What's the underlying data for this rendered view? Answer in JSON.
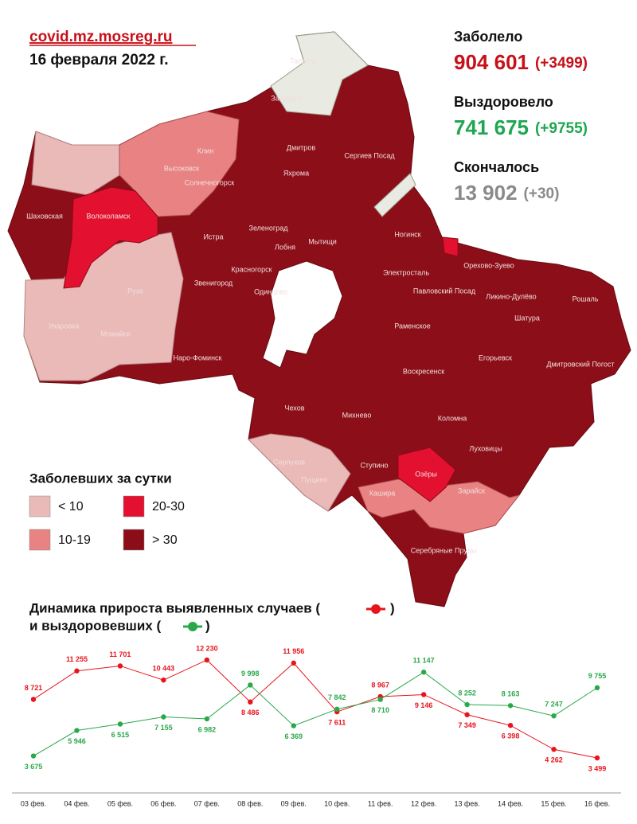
{
  "header": {
    "source": "covid.mz.mosreg.ru",
    "date": "16 февраля 2022 г."
  },
  "stats": [
    {
      "label": "Заболело",
      "value": "904 601",
      "delta": "(+3499)",
      "color": "#c8101a"
    },
    {
      "label": "Выздоровело",
      "value": "741 675",
      "delta": "(+9755)",
      "color": "#1ea650"
    },
    {
      "label": "Скончалось",
      "value": "13 902",
      "delta": "(+30)",
      "color": "#8a8a8a"
    }
  ],
  "legend": {
    "title": "Заболевших за сутки",
    "items": [
      {
        "label": "< 10",
        "color": "#e9bab7"
      },
      {
        "label": "20-30",
        "color": "#e3112f"
      },
      {
        "label": "10-19",
        "color": "#e98383"
      },
      {
        "label": "> 30",
        "color": "#8b0d18"
      }
    ]
  },
  "map": {
    "labels": [
      "Талдом",
      "Запрудня",
      "Клин",
      "Высоковск",
      "Дмитров",
      "Сергиев Посад",
      "Яхрома",
      "Солнечногорск",
      "Шаховская",
      "Волоколамск",
      "Зеленоград",
      "Истра",
      "Лобня",
      "Мытищи",
      "Ногинск",
      "Электросталь",
      "Красногорск",
      "Орехово-Зуево",
      "Павловский Посад",
      "Звенигород",
      "Одинцово",
      "Ликино-Дулёво",
      "Руза",
      "Рошаль",
      "Уваровка",
      "Можайск",
      "Раменское",
      "Шатура",
      "Егорьевск",
      "Наро-Фоминск",
      "Воскресенск",
      "Дмитровский Погост",
      "Чехов",
      "Михнево",
      "Коломна",
      "Луховицы",
      "Серпухов",
      "Пущино",
      "Ступино",
      "Озёры",
      "Кашира",
      "Зарайск",
      "Серебряные Пруды"
    ]
  },
  "chart_data": {
    "type": "line",
    "title_parts": [
      "Динамика прироста выявленных случаев (",
      ")",
      "и выздоровевших (",
      ")"
    ],
    "categories": [
      "03 фев.",
      "04 фев.",
      "05 фев.",
      "06 фев.",
      "07 фев.",
      "08 фев.",
      "09 фев.",
      "10 фев.",
      "11 фев.",
      "12 фев.",
      "13 фев.",
      "14 фев.",
      "15 фев.",
      "16 фев."
    ],
    "series": [
      {
        "name": "выявленные случаи",
        "color": "#e8141c",
        "values": [
          8721,
          11255,
          11701,
          10443,
          12230,
          8486,
          11956,
          7611,
          8967,
          9146,
          7349,
          6398,
          4262,
          3499
        ],
        "value_labels": [
          "8 721",
          "11 255",
          "11 701",
          "10 443",
          "12 230",
          "8 486",
          "11 956",
          "7 611",
          "8 967",
          "9 146",
          "7 349",
          "6 398",
          "4 262",
          "3 499"
        ]
      },
      {
        "name": "выздоровевшие",
        "color": "#2aa84a",
        "values": [
          3675,
          5946,
          6515,
          7155,
          6982,
          9998,
          6369,
          7842,
          8710,
          11147,
          8252,
          8163,
          7247,
          9755
        ],
        "value_labels": [
          "3 675",
          "5 946",
          "6 515",
          "7 155",
          "6 982",
          "9 998",
          "6 369",
          "7 842",
          "8 710",
          "11 147",
          "8 252",
          "8 163",
          "7 247",
          "9 755"
        ]
      }
    ]
  }
}
